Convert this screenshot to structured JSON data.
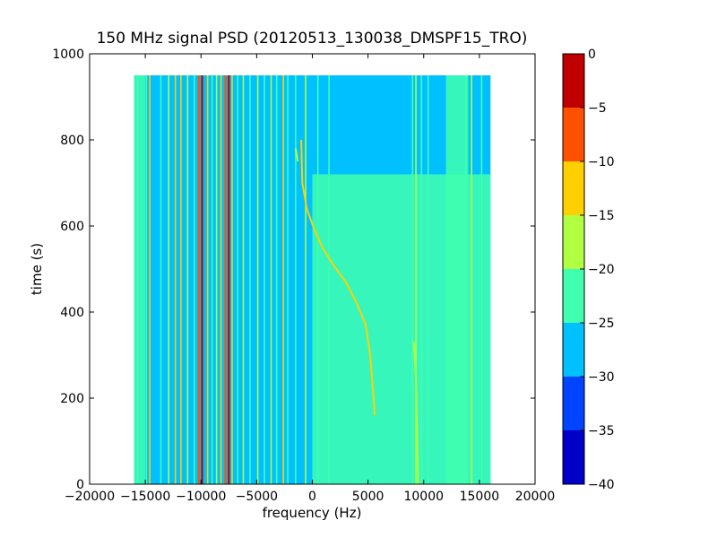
{
  "chart_data": {
    "type": "heatmap",
    "title": "150 MHz signal PSD (20120513_130038_DMSPF15_TRO)",
    "xlabel": "frequency (Hz)",
    "ylabel": "time (s)",
    "xlim": [
      -20000,
      20000
    ],
    "ylim": [
      0,
      1000
    ],
    "x_ticks": [
      -20000,
      -15000,
      -10000,
      -5000,
      0,
      5000,
      10000,
      15000,
      20000
    ],
    "y_ticks": [
      0,
      200,
      400,
      600,
      800,
      1000
    ],
    "data_extent": {
      "x": [
        -16000,
        16000
      ],
      "y": [
        0,
        950
      ]
    },
    "background_level": -27.5,
    "colorbar": {
      "ticks": [
        0,
        -5,
        -10,
        -15,
        -20,
        -25,
        -30,
        -35,
        -40
      ],
      "levels": [
        -40,
        -35,
        -30,
        -25,
        -20,
        -15,
        -10,
        -5,
        0
      ],
      "colors": [
        "#0000c8",
        "#0044ff",
        "#00c0ff",
        "#40ffb0",
        "#b0ff40",
        "#ffd000",
        "#ff5000",
        "#c00000"
      ]
    },
    "regions": [
      {
        "x": [
          -16000,
          -15000
        ],
        "y": [
          0,
          950
        ],
        "level": -22.5
      },
      {
        "x": [
          0,
          16000
        ],
        "y": [
          0,
          720
        ],
        "level": -22.5
      },
      {
        "x": [
          12000,
          14000
        ],
        "y": [
          0,
          950
        ],
        "level": -22.5
      }
    ],
    "vertical_lines": [
      {
        "x": -15700,
        "level": -22.5
      },
      {
        "x": -14900,
        "level": -22.5
      },
      {
        "x": -14600,
        "level": -12.5
      },
      {
        "x": -13600,
        "level": -22.5
      },
      {
        "x": -12900,
        "level": -17.5
      },
      {
        "x": -12300,
        "level": -12.5
      },
      {
        "x": -11800,
        "level": -12.5
      },
      {
        "x": -11200,
        "level": -17.5
      },
      {
        "x": -10600,
        "level": -22.5
      },
      {
        "x": -10200,
        "level": -7.5
      },
      {
        "x": -9900,
        "level": -2.5
      },
      {
        "x": -9400,
        "level": -12.5
      },
      {
        "x": -9000,
        "level": -22.5
      },
      {
        "x": -8600,
        "level": -17.5
      },
      {
        "x": -8200,
        "level": -12.5
      },
      {
        "x": -7800,
        "level": -7.5
      },
      {
        "x": -7500,
        "level": -2.5
      },
      {
        "x": -7200,
        "level": -12.5
      },
      {
        "x": -6700,
        "level": -22.5
      },
      {
        "x": -6200,
        "level": -17.5
      },
      {
        "x": -5600,
        "level": -22.5
      },
      {
        "x": -4900,
        "level": -17.5
      },
      {
        "x": -4300,
        "level": -22.5
      },
      {
        "x": -3700,
        "level": -17.5
      },
      {
        "x": -3200,
        "level": -22.5
      },
      {
        "x": -2600,
        "level": -12.5
      },
      {
        "x": -2200,
        "level": -22.5
      },
      {
        "x": -1500,
        "level": -22.5
      },
      {
        "x": -600,
        "level": -17.5
      },
      {
        "x": 500,
        "level": -22.5
      },
      {
        "x": 1500,
        "level": -22.5
      },
      {
        "x": 9000,
        "level": -22.5
      },
      {
        "x": 9300,
        "level": -17.5
      },
      {
        "x": 9800,
        "level": -22.5
      },
      {
        "x": 10400,
        "level": -22.5
      },
      {
        "x": 13800,
        "level": -22.5
      },
      {
        "x": 14300,
        "level": -17.5
      },
      {
        "x": 15200,
        "level": -22.5
      }
    ],
    "traces": [
      {
        "level": -12.5,
        "points": [
          [
            -1000,
            800
          ],
          [
            -900,
            700
          ],
          [
            -500,
            640
          ],
          [
            200,
            590
          ],
          [
            900,
            550
          ],
          [
            2000,
            505
          ],
          [
            3000,
            470
          ],
          [
            4000,
            420
          ],
          [
            4800,
            370
          ],
          [
            5200,
            300
          ],
          [
            5500,
            200
          ],
          [
            5600,
            160
          ]
        ]
      },
      {
        "level": -17.5,
        "points": [
          [
            -1500,
            780
          ],
          [
            -1300,
            750
          ]
        ]
      },
      {
        "level": -17.5,
        "points": [
          [
            9100,
            330
          ],
          [
            9300,
            250
          ],
          [
            9500,
            0
          ]
        ]
      }
    ]
  }
}
